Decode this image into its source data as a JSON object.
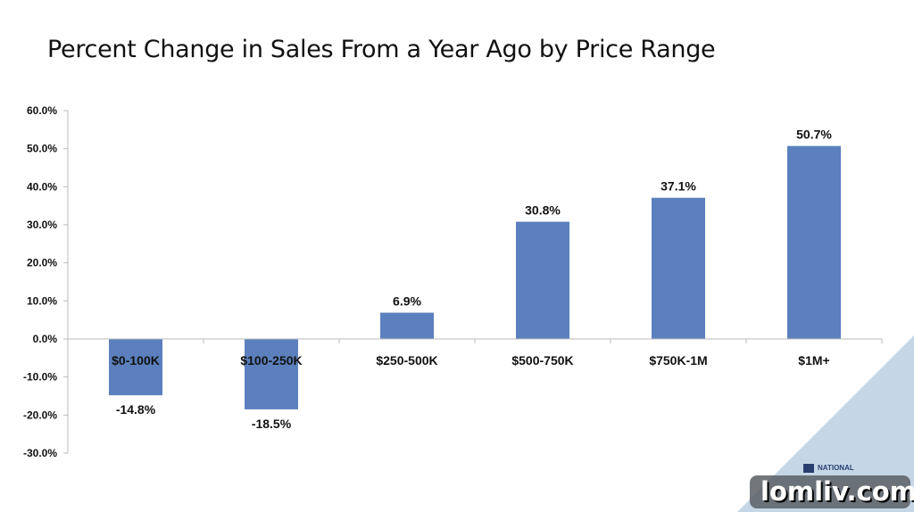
{
  "chart_data": {
    "type": "bar",
    "title": "Percent Change in Sales From a Year Ago by Price Range",
    "categories": [
      "$0-100K",
      "$100-250K",
      "$250-500K",
      "$500-750K",
      "$750K-1M",
      "$1M+"
    ],
    "values": [
      -14.8,
      -18.5,
      6.9,
      30.8,
      37.1,
      50.7
    ],
    "data_labels": [
      "-14.8%",
      "-18.5%",
      "6.9%",
      "30.8%",
      "37.1%",
      "50.7%"
    ],
    "yticks": [
      "60.0%",
      "50.0%",
      "40.0%",
      "30.0%",
      "20.0%",
      "10.0%",
      "0.0%",
      "-10.0%",
      "-20.0%",
      "-30.0%"
    ],
    "ylim": [
      -30,
      60
    ],
    "xlabel": "",
    "ylabel": "",
    "grid": false,
    "bar_color": "#5b80bd"
  },
  "decor": {
    "corner_color": "#c5d7e6",
    "watermark": "lomliv.com",
    "logo_text": "NATIONAL ASSOCIATION OF"
  }
}
